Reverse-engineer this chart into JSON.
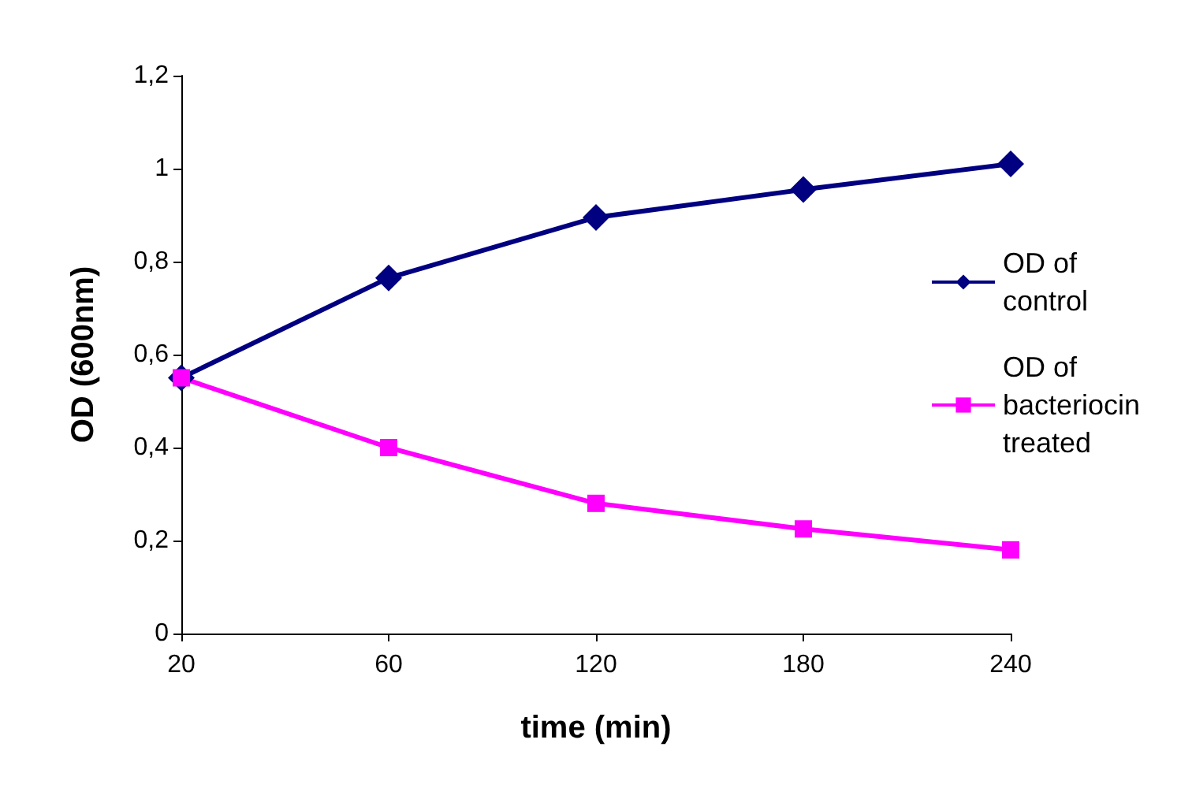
{
  "chart_data": {
    "type": "line",
    "xlabel": "time (min)",
    "ylabel": "OD (600nm)",
    "categories": [
      "20",
      "60",
      "120",
      "180",
      "240"
    ],
    "series": [
      {
        "name": "OD of control",
        "color": "#000080",
        "marker": "diamond",
        "values": [
          0.55,
          0.765,
          0.895,
          0.955,
          1.01
        ]
      },
      {
        "name": "OD of bacteriocin treated",
        "color": "#ff00ff",
        "marker": "square",
        "values": [
          0.55,
          0.4,
          0.28,
          0.225,
          0.18
        ]
      }
    ],
    "ylim": [
      0,
      1.2
    ],
    "yticks": [
      {
        "value": 0,
        "label": "0"
      },
      {
        "value": 0.2,
        "label": "0,2"
      },
      {
        "value": 0.4,
        "label": "0,4"
      },
      {
        "value": 0.6,
        "label": "0,6"
      },
      {
        "value": 0.8,
        "label": "0,8"
      },
      {
        "value": 1,
        "label": "1"
      },
      {
        "value": 1.2,
        "label": "1,2"
      }
    ],
    "grid": false,
    "legend": "right",
    "line_style": "solid"
  }
}
